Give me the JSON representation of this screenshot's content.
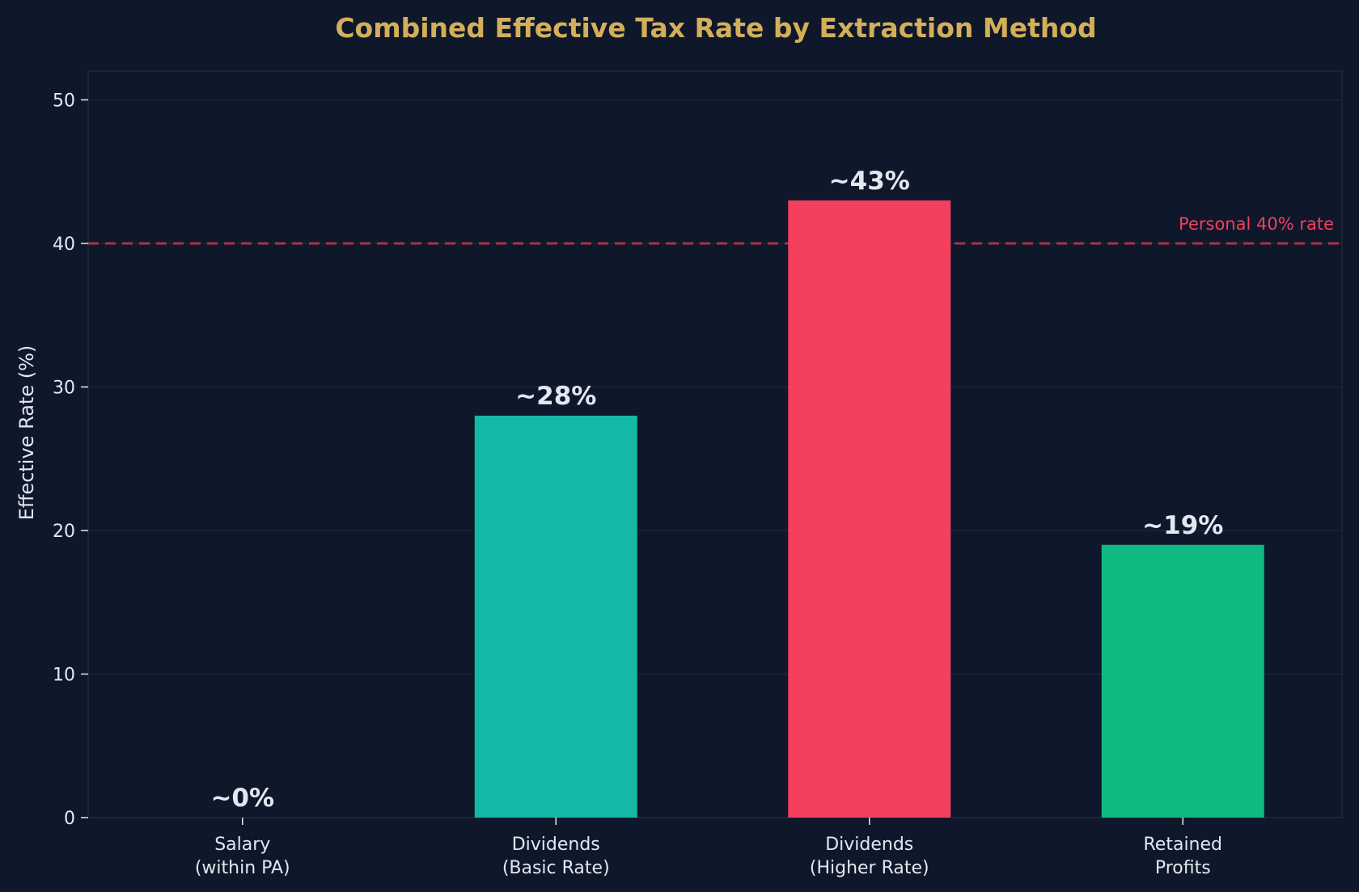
{
  "chart_data": {
    "type": "bar",
    "title": "Combined Effective Tax Rate by Extraction Method",
    "xlabel": "",
    "ylabel": "Effective Rate (%)",
    "ylim": [
      0,
      52
    ],
    "yticks": [
      "0",
      "10",
      "20",
      "30",
      "40",
      "50"
    ],
    "grid": true,
    "categories": [
      {
        "line1": "Salary",
        "line2": "(within PA)"
      },
      {
        "line1": "Dividends",
        "line2": "(Basic Rate)"
      },
      {
        "line1": "Dividends",
        "line2": "(Higher Rate)"
      },
      {
        "line1": "Retained",
        "line2": "Profits"
      }
    ],
    "values": [
      0,
      28,
      43,
      19
    ],
    "data_labels": [
      "~0%",
      "~28%",
      "~43%",
      "~19%"
    ],
    "bar_colors": [
      "#14b8a6",
      "#14b8a6",
      "#f43f5e",
      "#10b981"
    ],
    "reference_line": {
      "value": 40,
      "label": "Personal 40% rate",
      "color": "#f43f5e",
      "style": "dashed"
    }
  },
  "colors": {
    "background": "#0f172a",
    "title": "#d4af5a",
    "text": "#e2e8f0",
    "axis": "#334155",
    "grid": "#1e293b"
  }
}
